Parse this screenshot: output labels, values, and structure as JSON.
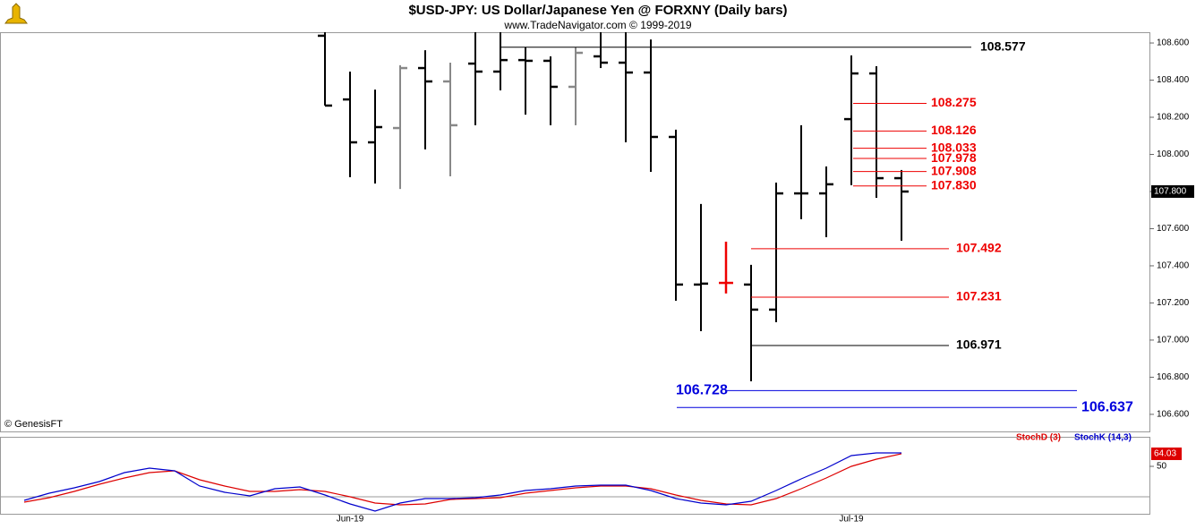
{
  "chart_data": [
    {
      "type": "ohlc",
      "title": "$USD-JPY:  US Dollar/Japanese Yen @ FORXNY  (Daily bars)",
      "subtitle": "www.TradeNavigator.com © 1999-2019",
      "credit": "© GenesisFT",
      "categories": [
        null,
        null,
        null,
        null,
        null,
        null,
        null,
        null,
        null,
        null,
        null,
        null,
        null,
        "Jun-19",
        null,
        null,
        null,
        null,
        null,
        null,
        null,
        null,
        null,
        null,
        null,
        null,
        null,
        null,
        null,
        null,
        null,
        null,
        null,
        "Jul-19",
        null,
        null
      ],
      "open": [
        null,
        null,
        null,
        null,
        null,
        null,
        null,
        null,
        null,
        null,
        null,
        null,
        108.639,
        108.296,
        108.065,
        108.142,
        108.465,
        108.393,
        108.489,
        108.446,
        108.508,
        108.504,
        108.364,
        108.528,
        108.494,
        108.441,
        108.094,
        107.299,
        107.308,
        107.299,
        107.164,
        107.79,
        107.79,
        108.19,
        108.436,
        107.872
      ],
      "high": [
        null,
        null,
        null,
        null,
        null,
        null,
        null,
        null,
        null,
        null,
        null,
        null,
        108.687,
        108.446,
        108.349,
        108.48,
        108.561,
        108.494,
        108.663,
        108.658,
        108.576,
        108.528,
        108.576,
        108.687,
        108.658,
        108.619,
        108.133,
        107.733,
        107.53,
        107.405,
        107.848,
        108.157,
        107.935,
        108.533,
        108.475,
        107.916
      ],
      "low": [
        null,
        null,
        null,
        null,
        null,
        null,
        null,
        null,
        null,
        null,
        null,
        null,
        108.263,
        107.877,
        107.843,
        107.814,
        108.027,
        107.882,
        108.157,
        108.345,
        108.214,
        108.157,
        108.157,
        108.465,
        108.065,
        107.906,
        107.212,
        107.048,
        107.251,
        106.778,
        107.096,
        107.651,
        107.554,
        107.834,
        107.766,
        107.535
      ],
      "close": [
        null,
        null,
        null,
        null,
        null,
        null,
        null,
        null,
        null,
        null,
        null,
        null,
        108.263,
        108.065,
        108.147,
        108.465,
        108.393,
        108.157,
        108.446,
        108.508,
        108.504,
        108.364,
        108.547,
        108.494,
        108.441,
        108.094,
        107.299,
        107.304,
        107.308,
        107.164,
        107.79,
        107.79,
        107.839,
        108.436,
        107.872,
        107.8
      ],
      "colors": [
        null,
        null,
        null,
        null,
        null,
        null,
        null,
        null,
        null,
        null,
        null,
        null,
        "#000000",
        "#000000",
        "#000000",
        "#888888",
        "#000000",
        "#888888",
        "#000000",
        "#000000",
        "#000000",
        "#000000",
        "#888888",
        "#000000",
        "#000000",
        "#000000",
        "#000000",
        "#000000",
        "#ee0000",
        "#000000",
        "#000000",
        "#000000",
        "#000000",
        "#000000",
        "#000000",
        "#000000"
      ],
      "ylim": [
        106.508,
        108.658
      ],
      "yticks": [
        {
          "value": 106.6,
          "label": "106.600"
        },
        {
          "value": 106.8,
          "label": "106.800"
        },
        {
          "value": 107,
          "label": "107.000"
        },
        {
          "value": 107.2,
          "label": "107.200"
        },
        {
          "value": 107.4,
          "label": "107.400"
        },
        {
          "value": 107.6,
          "label": "107.600"
        },
        {
          "value": 107.8,
          "label": "107.800"
        },
        {
          "value": 108,
          "label": "108.000"
        },
        {
          "value": 108.2,
          "label": "108.200"
        },
        {
          "value": 108.4,
          "label": "108.400"
        },
        {
          "value": 108.6,
          "label": "108.600"
        }
      ],
      "last": {
        "value": 107.8,
        "label": "107.800"
      },
      "levels": [
        {
          "value": 108.577,
          "color": "#000000"
        },
        {
          "value": 108.275,
          "color": "#ee0000"
        },
        {
          "value": 108.126,
          "color": "#ee0000"
        },
        {
          "value": 108.033,
          "color": "#ee0000"
        },
        {
          "value": 107.978,
          "color": "#ee0000"
        },
        {
          "value": 107.908,
          "color": "#ee0000"
        },
        {
          "value": 107.83,
          "label": "107.830",
          "color": "#ee0000"
        },
        {
          "value": 107.492,
          "color": "#ee0000"
        },
        {
          "value": 107.231,
          "color": "#ee0000"
        },
        {
          "value": 106.971,
          "color": "#000000"
        },
        {
          "value": 106.728,
          "color": "#0000dd"
        },
        {
          "value": 106.637,
          "color": "#0000dd"
        }
      ]
    },
    {
      "type": "line",
      "series": [
        {
          "name": "StochD (3)",
          "color": "#dd0000",
          "values": [
            10,
            15,
            22,
            30,
            37,
            43,
            45,
            35,
            28,
            22,
            22,
            24,
            22,
            16,
            9,
            7,
            8,
            13,
            14,
            15,
            20,
            23,
            26,
            28,
            28,
            25,
            18,
            12,
            8,
            7,
            14,
            25,
            37,
            50,
            58,
            64.03
          ]
        },
        {
          "name": "StochK (14,3)",
          "color": "#0000cc",
          "values": [
            12,
            20,
            26,
            33,
            43,
            48,
            45,
            28,
            21,
            17,
            25,
            27,
            18,
            8,
            0,
            9,
            14,
            14,
            15,
            18,
            23,
            25,
            28,
            29,
            29,
            23,
            14,
            9,
            7,
            11,
            23,
            36,
            48,
            62,
            65,
            65
          ]
        }
      ],
      "ylim": [
        -3,
        81
      ],
      "yticks": [
        50
      ],
      "last": 64.03
    }
  ]
}
